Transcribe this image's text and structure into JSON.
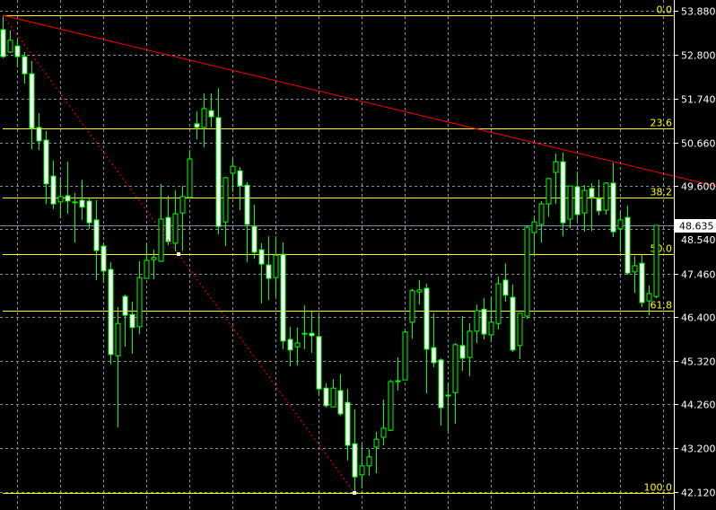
{
  "chart_data": {
    "type": "candlestick",
    "ylim": [
      42.12,
      53.88
    ],
    "grid": true,
    "y_ticks": [
      "53.880",
      "52.800",
      "51.740",
      "50.660",
      "49.600",
      "48.540",
      "47.460",
      "46.400",
      "45.320",
      "44.260",
      "43.200",
      "42.120"
    ],
    "ohlc": [
      [
        53.42,
        53.77,
        52.72,
        52.76
      ],
      [
        52.87,
        53.4,
        52.85,
        53.16
      ],
      [
        53.02,
        53.16,
        52.5,
        52.76
      ],
      [
        52.76,
        52.87,
        52.1,
        52.34
      ],
      [
        52.34,
        52.65,
        50.5,
        51.01
      ],
      [
        51.03,
        51.38,
        50.48,
        50.7
      ],
      [
        50.72,
        50.94,
        49.16,
        49.65
      ],
      [
        49.84,
        50.22,
        49.03,
        49.16
      ],
      [
        49.21,
        49.82,
        48.81,
        49.34
      ],
      [
        49.36,
        50.19,
        48.92,
        49.23
      ],
      [
        49.21,
        49.43,
        48.22,
        49.2
      ],
      [
        49.25,
        49.75,
        48.77,
        49.08
      ],
      [
        49.23,
        49.32,
        48.55,
        48.7
      ],
      [
        48.77,
        49.25,
        47.3,
        48.02
      ],
      [
        48.13,
        48.22,
        47.23,
        47.52
      ],
      [
        47.56,
        47.74,
        45.24,
        45.48
      ],
      [
        45.45,
        46.64,
        43.7,
        46.24
      ],
      [
        46.9,
        46.95,
        45.67,
        46.44
      ],
      [
        46.46,
        46.77,
        45.5,
        46.14
      ],
      [
        46.16,
        47.76,
        45.98,
        47.36
      ],
      [
        47.34,
        48.2,
        47.34,
        47.78
      ],
      [
        47.8,
        48.04,
        47.32,
        47.85
      ],
      [
        47.76,
        49.65,
        47.74,
        48.79
      ],
      [
        48.83,
        49.36,
        48.15,
        48.24
      ],
      [
        48.2,
        49.49,
        48.0,
        48.92
      ],
      [
        48.94,
        49.6,
        48.02,
        49.34
      ],
      [
        49.32,
        50.48,
        49.32,
        50.26
      ],
      [
        51.12,
        51.42,
        50.74,
        51.03
      ],
      [
        51.03,
        51.86,
        50.54,
        51.49
      ],
      [
        51.44,
        51.86,
        51.03,
        51.29
      ],
      [
        51.27,
        51.99,
        48.42,
        48.61
      ],
      [
        48.72,
        49.82,
        48.13,
        49.8
      ],
      [
        49.91,
        50.3,
        49.45,
        50.08
      ],
      [
        49.97,
        50.06,
        49.01,
        49.6
      ],
      [
        49.62,
        49.69,
        47.74,
        48.66
      ],
      [
        48.61,
        49.14,
        47.82,
        47.98
      ],
      [
        48.04,
        48.2,
        46.73,
        47.69
      ],
      [
        47.67,
        48.37,
        46.81,
        47.34
      ],
      [
        47.36,
        48.37,
        46.9,
        47.91
      ],
      [
        47.93,
        48.22,
        45.61,
        45.81
      ],
      [
        45.85,
        46.16,
        45.19,
        45.59
      ],
      [
        45.67,
        46.14,
        45.21,
        45.76
      ],
      [
        46.0,
        46.68,
        45.61,
        46.0
      ],
      [
        46.0,
        46.53,
        45.52,
        45.94
      ],
      [
        45.92,
        46.49,
        44.49,
        44.64
      ],
      [
        44.66,
        44.78,
        44.18,
        44.23
      ],
      [
        44.2,
        44.88,
        44.2,
        44.66
      ],
      [
        44.6,
        45.0,
        43.98,
        44.03
      ],
      [
        44.31,
        44.64,
        42.89,
        43.26
      ],
      [
        43.3,
        44.14,
        42.1,
        42.49
      ],
      [
        42.54,
        43.28,
        42.21,
        42.76
      ],
      [
        42.76,
        43.17,
        42.52,
        42.98
      ],
      [
        43.22,
        43.59,
        42.58,
        43.41
      ],
      [
        43.46,
        44.38,
        43.26,
        43.68
      ],
      [
        43.63,
        44.86,
        43.61,
        44.82
      ],
      [
        44.84,
        45.41,
        44.6,
        44.82
      ],
      [
        44.86,
        46.09,
        44.86,
        46.03
      ],
      [
        46.27,
        47.08,
        45.87,
        47.04
      ],
      [
        47.01,
        47.3,
        46.7,
        47.06
      ],
      [
        47.1,
        47.21,
        44.53,
        45.61
      ],
      [
        45.65,
        46.49,
        45.17,
        45.28
      ],
      [
        45.35,
        45.39,
        43.74,
        44.18
      ],
      [
        44.49,
        44.8,
        43.61,
        44.49
      ],
      [
        44.55,
        45.76,
        43.79,
        45.72
      ],
      [
        45.7,
        46.42,
        45.08,
        45.39
      ],
      [
        45.41,
        46.24,
        44.95,
        46.05
      ],
      [
        46.05,
        46.7,
        45.76,
        46.55
      ],
      [
        46.59,
        46.86,
        45.85,
        45.98
      ],
      [
        45.96,
        46.88,
        45.78,
        46.27
      ],
      [
        46.24,
        47.39,
        46.09,
        47.21
      ],
      [
        47.3,
        47.71,
        46.77,
        46.93
      ],
      [
        46.88,
        47.19,
        45.54,
        45.59
      ],
      [
        45.7,
        46.49,
        45.37,
        46.49
      ],
      [
        46.42,
        48.64,
        46.35,
        48.59
      ],
      [
        48.46,
        48.85,
        47.87,
        48.72
      ],
      [
        48.66,
        49.23,
        48.22,
        49.16
      ],
      [
        49.16,
        49.8,
        48.85,
        49.78
      ],
      [
        49.93,
        50.39,
        49.16,
        50.19
      ],
      [
        50.19,
        50.41,
        48.37,
        48.7
      ],
      [
        48.79,
        49.6,
        48.57,
        49.6
      ],
      [
        49.58,
        49.95,
        48.75,
        48.9
      ],
      [
        48.94,
        49.62,
        48.48,
        49.49
      ],
      [
        49.54,
        49.67,
        48.5,
        49.32
      ],
      [
        49.29,
        49.75,
        48.88,
        48.99
      ],
      [
        49.01,
        49.69,
        48.9,
        49.67
      ],
      [
        49.67,
        50.17,
        48.35,
        48.48
      ],
      [
        48.55,
        48.99,
        47.98,
        48.77
      ],
      [
        48.83,
        49.12,
        47.43,
        47.47
      ],
      [
        47.5,
        47.89,
        46.99,
        47.65
      ],
      [
        47.71,
        47.93,
        46.64,
        46.75
      ],
      [
        46.79,
        47.17,
        46.44,
        46.97
      ],
      [
        46.9,
        48.64,
        46.86,
        48.635
      ]
    ],
    "fibonacci": {
      "from": {
        "bar": 0,
        "price": 53.77
      },
      "to": {
        "bar": 49,
        "price": 42.1
      },
      "levels": [
        {
          "label": "0.0",
          "ratio": 0.0
        },
        {
          "label": "23.6",
          "ratio": 0.236
        },
        {
          "label": "38.2",
          "ratio": 0.382
        },
        {
          "label": "50.0",
          "ratio": 0.5
        },
        {
          "label": "61.8",
          "ratio": 0.618
        },
        {
          "label": "100.0",
          "ratio": 1.0
        }
      ]
    },
    "trendline": {
      "from": {
        "bar": 0,
        "price": 53.77
      },
      "to": {
        "bar": 93.5,
        "price": 49.84
      }
    },
    "current_price": "48.635",
    "colors": {
      "background": "#000000",
      "candle_outline": "#00ff00",
      "bear_body": "#ffffff",
      "bull_body": "#000000",
      "grid": "#8090a0",
      "fib_level": "#ffff00",
      "trendline": "#ff0000",
      "bid_line": "#8090a0",
      "axis_text": "#ffffff"
    }
  }
}
